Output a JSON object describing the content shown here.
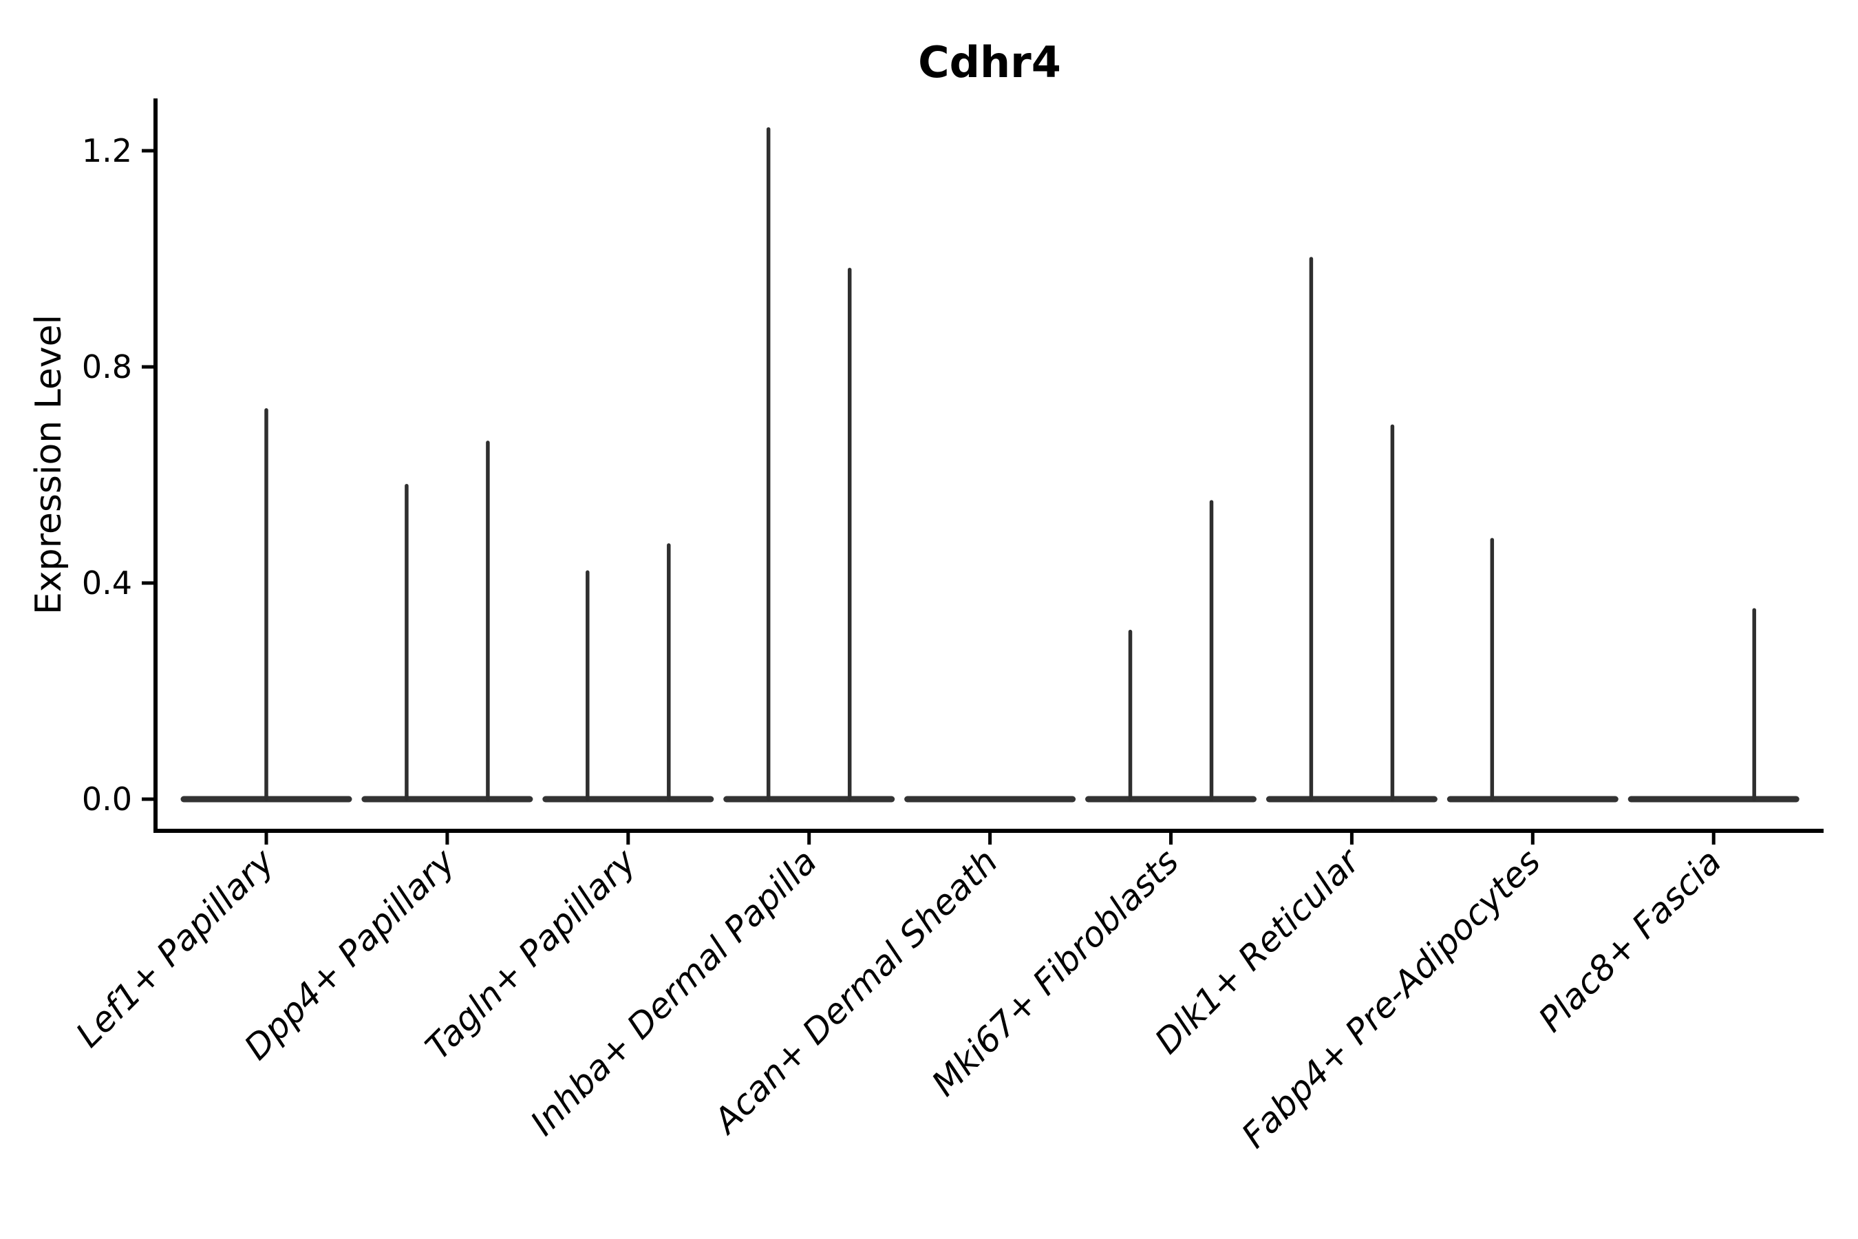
{
  "title": "Cdhr4",
  "chart_data": {
    "type": "violin",
    "title": "Cdhr4",
    "ylabel": "Expression Level",
    "xlabel": "",
    "yticks": [
      "0.0",
      "0.4",
      "0.8",
      "1.2"
    ],
    "ylim": [
      -0.06,
      1.3
    ],
    "grid": false,
    "legend": "none",
    "categories": [
      "Lef1+ Papillary",
      "Dpp4+ Papillary",
      "Tagln+ Papillary",
      "Inhba+ Dermal Papilla",
      "Acan+ Dermal Sheath",
      "Mki67+ Fibroblasts",
      "Dlk1+ Reticular",
      "Fabp4+ Pre-Adipocytes",
      "Plac8+ Fascia"
    ],
    "violins": [
      {
        "category": "Lef1+ Papillary",
        "baseline_value": 0,
        "spikes": [
          {
            "position": "center",
            "max": 0.72
          }
        ]
      },
      {
        "category": "Dpp4+ Papillary",
        "baseline_value": 0,
        "spikes": [
          {
            "position": "left",
            "max": 0.58
          },
          {
            "position": "right",
            "max": 0.66
          }
        ]
      },
      {
        "category": "Tagln+ Papillary",
        "baseline_value": 0,
        "spikes": [
          {
            "position": "left",
            "max": 0.42
          },
          {
            "position": "right",
            "max": 0.47
          }
        ]
      },
      {
        "category": "Inhba+ Dermal Papilla",
        "baseline_value": 0,
        "spikes": [
          {
            "position": "left",
            "max": 1.24
          },
          {
            "position": "right",
            "max": 0.98
          }
        ]
      },
      {
        "category": "Acan+ Dermal Sheath",
        "baseline_value": 0,
        "spikes": []
      },
      {
        "category": "Mki67+ Fibroblasts",
        "baseline_value": 0,
        "spikes": [
          {
            "position": "left",
            "max": 0.31
          },
          {
            "position": "right",
            "max": 0.55
          }
        ]
      },
      {
        "category": "Dlk1+ Reticular",
        "baseline_value": 0,
        "spikes": [
          {
            "position": "left",
            "max": 1.0
          },
          {
            "position": "right",
            "max": 0.69
          }
        ]
      },
      {
        "category": "Fabp4+ Pre-Adipocytes",
        "baseline_value": 0,
        "spikes": [
          {
            "position": "left",
            "max": 0.48
          }
        ]
      },
      {
        "category": "Plac8+ Fascia",
        "baseline_value": 0,
        "spikes": [
          {
            "position": "right",
            "max": 0.35
          }
        ]
      }
    ],
    "colors": {
      "spine": "#000000",
      "violin_line": "#2f2f2f",
      "violin_base": "#333333",
      "background": "#ffffff",
      "text": "#000000"
    }
  }
}
